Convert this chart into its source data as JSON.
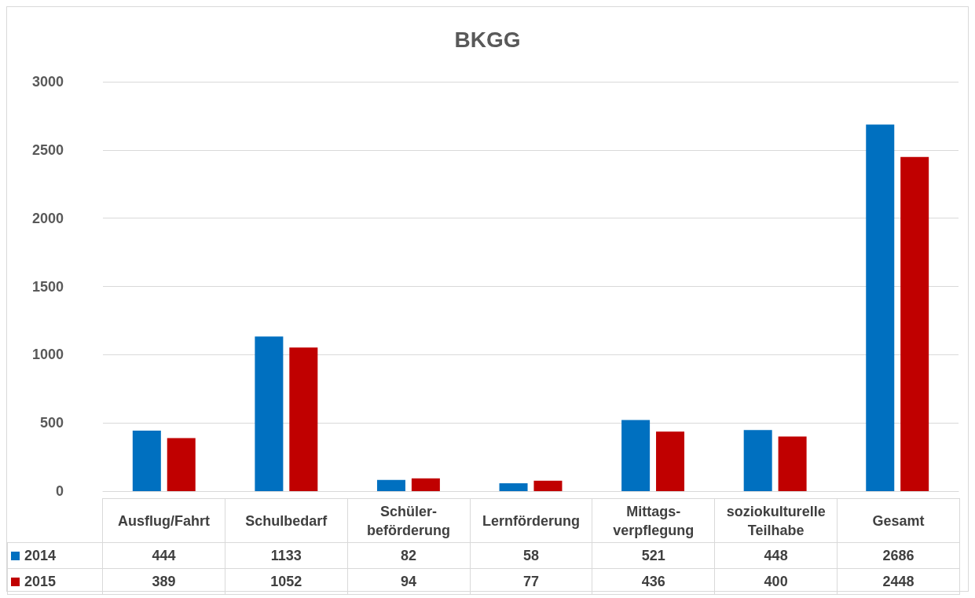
{
  "chart_data": {
    "type": "bar",
    "title": "BKGG",
    "categories": [
      "Ausflug/Fahrt",
      "Schulbedarf",
      "Schüler-beförderung",
      "Lernförderung",
      "Mittags-verpflegung",
      "soziokulturelle Teilhabe",
      "Gesamt"
    ],
    "series": [
      {
        "name": "2014",
        "color": "#0070c0",
        "values": [
          444,
          1133,
          82,
          58,
          521,
          448,
          2686
        ]
      },
      {
        "name": "2015",
        "color": "#c00000",
        "values": [
          389,
          1052,
          94,
          77,
          436,
          400,
          2448
        ]
      }
    ],
    "ylim": [
      0,
      3000
    ],
    "yticks": [
      0,
      500,
      1000,
      1500,
      2000,
      2500,
      3000
    ],
    "grid": "y",
    "legend": "bottom left",
    "data_labels": true
  }
}
